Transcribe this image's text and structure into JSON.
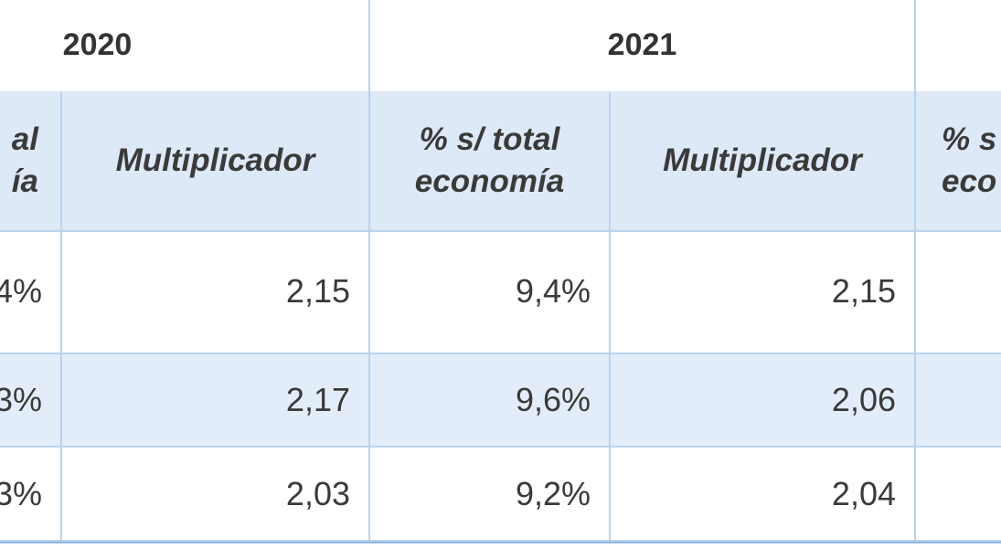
{
  "table": {
    "year_headers": [
      "2020",
      "2021"
    ],
    "column_headers": [
      [
        "al",
        "ía"
      ],
      [
        "Multiplicador"
      ],
      [
        "% s/ total",
        "economía"
      ],
      [
        "Multiplicador"
      ],
      [
        "% s",
        "eco"
      ]
    ],
    "rows": [
      [
        "4%",
        "2,15",
        "9,4%",
        "2,15"
      ],
      [
        "3%",
        "2,17",
        "9,6%",
        "2,06"
      ],
      [
        "3%",
        "2,03",
        "9,2%",
        "2,04"
      ]
    ]
  }
}
